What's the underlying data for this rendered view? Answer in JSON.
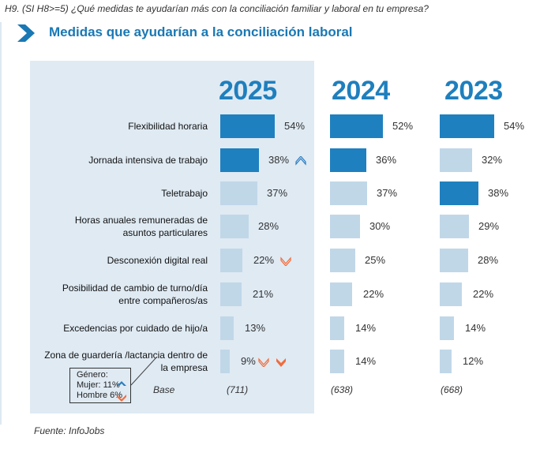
{
  "question": "H9. (SI H8>=5) ¿Qué medidas te ayudarían más con la conciliación familiar y laboral en tu empresa?",
  "section_title": "Medidas que ayudarían a la conciliación laboral",
  "source": "Fuente: InfoJobs",
  "colors": {
    "highlight": "#1f80bf",
    "normal": "#c0d7e8",
    "title": "#1a78b4",
    "down": "#f26b3a",
    "up": "#2a7cc0"
  },
  "gender_note": {
    "title": "Género:",
    "women": "Mujer: 11%",
    "men": "Hombre 6%"
  },
  "chart_data": {
    "type": "bar",
    "orientation": "horizontal",
    "title": "Medidas que ayudarían a la conciliación laboral",
    "xlabel": "",
    "ylabel": "",
    "unit": "%",
    "xlim": [
      0,
      100
    ],
    "categories": [
      "Flexibilidad horaria",
      "Jornada intensiva de trabajo",
      "Teletrabajo",
      "Horas anuales remuneradas de asuntos particulares",
      "Desconexión digital real",
      "Posibilidad de cambio de turno/día entre compañeros/as",
      "Excedencias por cuidado de hijo/a",
      "Zona de guardería /lactancia dentro de la empresa"
    ],
    "category_lines": [
      [
        "Flexibilidad horaria"
      ],
      [
        "Jornada intensiva de trabajo"
      ],
      [
        "Teletrabajo"
      ],
      [
        "Horas anuales remuneradas de",
        "asuntos particulares"
      ],
      [
        "Desconexión digital real"
      ],
      [
        "Posibilidad de cambio de turno/día",
        "entre compañeros/as"
      ],
      [
        "Excedencias por cuidado de hijo/a"
      ],
      [
        "Zona de guardería /lactancia dentro de",
        "la empresa"
      ]
    ],
    "base_label": "Base",
    "series": [
      {
        "name": "2025",
        "base": "(711)",
        "values": [
          54,
          38,
          37,
          28,
          22,
          21,
          13,
          9
        ],
        "highlighted": [
          true,
          true,
          false,
          false,
          false,
          false,
          false,
          false
        ],
        "markers": [
          null,
          "up-outline",
          null,
          null,
          "down-outline",
          null,
          null,
          "down-outline+down-filled"
        ]
      },
      {
        "name": "2024",
        "base": "(638)",
        "values": [
          52,
          36,
          37,
          30,
          25,
          22,
          14,
          14
        ],
        "highlighted": [
          true,
          true,
          false,
          false,
          false,
          false,
          false,
          false
        ]
      },
      {
        "name": "2023",
        "base": "(668)",
        "values": [
          54,
          32,
          38,
          29,
          28,
          22,
          14,
          12
        ],
        "highlighted": [
          true,
          false,
          true,
          false,
          false,
          false,
          false,
          false
        ]
      }
    ]
  }
}
